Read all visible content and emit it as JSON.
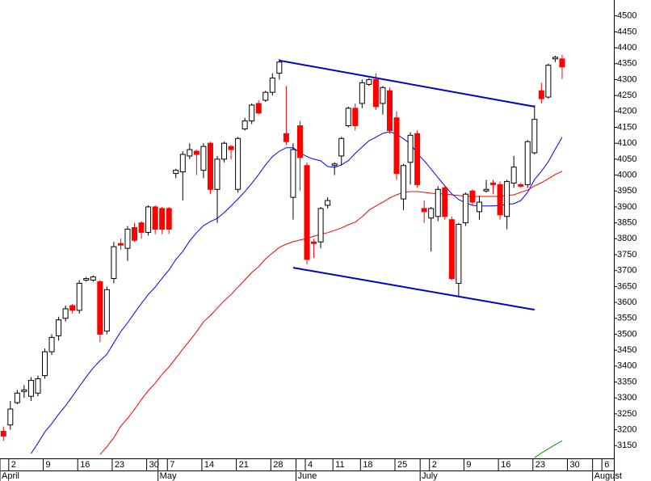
{
  "chart_data": {
    "type": "candlestick",
    "categories": [
      null,
      "2",
      null,
      null,
      null,
      null,
      "9",
      null,
      null,
      null,
      null,
      "16",
      null,
      null,
      null,
      null,
      "23",
      null,
      null,
      null,
      null,
      "30",
      null,
      null,
      "7",
      null,
      null,
      null,
      null,
      "14",
      null,
      null,
      null,
      null,
      "21",
      null,
      null,
      null,
      null,
      "28",
      null,
      null,
      null,
      null,
      "4",
      null,
      null,
      null,
      "11",
      null,
      null,
      null,
      "18",
      null,
      null,
      null,
      null,
      "25",
      null,
      null,
      null,
      null,
      "2",
      null,
      null,
      null,
      null,
      "9",
      null,
      null,
      null,
      null,
      "16",
      null,
      null,
      null,
      null,
      "23",
      null,
      null,
      null,
      null,
      "30",
      null,
      null,
      null,
      null,
      "6",
      null
    ],
    "months": [
      "April",
      "May",
      "June",
      "July",
      "August"
    ],
    "open": [
      3195,
      3215,
      3285,
      3320,
      3305,
      3315,
      3370,
      3445,
      3495,
      3550,
      3590,
      3575,
      3670,
      3670,
      3665,
      3510,
      3675,
      3785,
      3770,
      3835,
      3850,
      3820,
      3900,
      3895,
      3895,
      4005,
      4010,
      4060,
      4075,
      4015,
      4100,
      3955,
      4050,
      4090,
      3955,
      4145,
      4170,
      4225,
      4235,
      4260,
      4320,
      4130,
      3930,
      4155,
      4030,
      3790,
      3790,
      3905,
      4030,
      4060,
      4155,
      4210,
      4225,
      4285,
      4300,
      4225,
      4265,
      4180,
      3925,
      4040,
      4130,
      3895,
      3865,
      3870,
      3960,
      3860,
      3660,
      3850,
      3950,
      3885,
      3950,
      3975,
      3970,
      3870,
      3975,
      3970,
      3970,
      4070,
      4265,
      4245,
      4365,
      4365,
      null,
      null,
      null,
      null,
      null,
      null,
      null
    ],
    "high": [
      3210,
      3290,
      3325,
      3340,
      3365,
      3370,
      3455,
      3500,
      3555,
      3590,
      3595,
      3670,
      3680,
      3685,
      3670,
      3650,
      3790,
      3800,
      3840,
      3850,
      3855,
      3905,
      3905,
      3900,
      3900,
      4020,
      4075,
      4100,
      4080,
      4100,
      4105,
      4060,
      4105,
      4095,
      4120,
      4180,
      4225,
      4235,
      4265,
      4320,
      4365,
      4280,
      4100,
      4170,
      4040,
      3800,
      3900,
      3930,
      4040,
      4120,
      4215,
      4225,
      4300,
      4305,
      4320,
      4280,
      4275,
      4200,
      4035,
      4135,
      4140,
      3920,
      3900,
      3965,
      3965,
      3870,
      3850,
      3945,
      3955,
      3935,
      3985,
      3985,
      3980,
      3985,
      4060,
      3975,
      4110,
      4220,
      4290,
      4350,
      4375,
      4378,
      null,
      null,
      null,
      null,
      null,
      null,
      null
    ],
    "low": [
      3165,
      3200,
      3280,
      3300,
      3290,
      3305,
      3360,
      3435,
      3480,
      3540,
      3565,
      3565,
      3665,
      3665,
      3475,
      3500,
      3660,
      3765,
      3730,
      3790,
      3800,
      3810,
      3815,
      3815,
      3815,
      3990,
      3920,
      4050,
      4000,
      3990,
      3940,
      3850,
      4040,
      4050,
      3945,
      4140,
      4160,
      4190,
      4230,
      4250,
      4300,
      4095,
      3860,
      3950,
      3720,
      3740,
      3770,
      3895,
      4000,
      4030,
      4150,
      4140,
      4210,
      4280,
      4205,
      4190,
      4130,
      3985,
      3890,
      3970,
      3960,
      3850,
      3760,
      3855,
      3860,
      3670,
      3620,
      3840,
      3905,
      3860,
      3945,
      3940,
      3860,
      3830,
      3960,
      3960,
      3960,
      4065,
      4225,
      4240,
      4355,
      4302,
      null,
      null,
      null,
      null,
      null,
      null,
      null
    ],
    "close": [
      3180,
      3265,
      3315,
      3325,
      3355,
      3360,
      3445,
      3490,
      3545,
      3580,
      3575,
      3660,
      3675,
      3680,
      3500,
      3640,
      3775,
      3780,
      3830,
      3795,
      3820,
      3900,
      3830,
      3830,
      3830,
      4015,
      4065,
      4080,
      4065,
      4090,
      3955,
      4050,
      4100,
      4080,
      4115,
      4170,
      4220,
      4195,
      4260,
      4305,
      4355,
      4105,
      4080,
      4055,
      3735,
      3785,
      3895,
      3920,
      4035,
      4115,
      4210,
      4155,
      4290,
      4300,
      4215,
      4275,
      4140,
      4005,
      4030,
      4125,
      3970,
      3885,
      3895,
      3955,
      3870,
      3675,
      3845,
      3940,
      3915,
      3915,
      3955,
      3970,
      3875,
      3980,
      4025,
      3965,
      4105,
      4175,
      4240,
      4345,
      4370,
      4340,
      null,
      null,
      null,
      null,
      null,
      null,
      null
    ],
    "up_color": "#ffffff",
    "down_color": "#ff0000",
    "series": [
      {
        "color": "#0000ff",
        "values": [
          null,
          null,
          null,
          null,
          3125,
          3158,
          3193,
          3219,
          3249,
          3275,
          3305,
          3336,
          3366,
          3394,
          3417,
          3437,
          3473,
          3508,
          3536,
          3567,
          3597,
          3625,
          3648,
          3676,
          3702,
          3735,
          3760,
          3793,
          3819,
          3841,
          3854,
          3864,
          3882,
          3903,
          3925,
          3948,
          3974,
          4002,
          4032,
          4058,
          4075,
          4086,
          4086,
          4070,
          4058,
          4050,
          4045,
          4027,
          4024,
          4032,
          4045,
          4068,
          4088,
          4108,
          4119,
          4131,
          4136,
          4129,
          4114,
          4098,
          4068,
          4045,
          4019,
          3992,
          3966,
          3941,
          3923,
          3913,
          3905,
          3903,
          3903,
          3903,
          3905,
          3908,
          3910,
          3920,
          3946,
          3986,
          4012,
          4042,
          4081,
          4119,
          null,
          null,
          null,
          null,
          null,
          null,
          null
        ]
      },
      {
        "color": "#ff0000",
        "values": [
          null,
          null,
          null,
          null,
          null,
          null,
          null,
          null,
          null,
          null,
          null,
          null,
          null,
          null,
          3122,
          3147,
          3175,
          3211,
          3236,
          3264,
          3295,
          3323,
          3346,
          3374,
          3397,
          3425,
          3453,
          3480,
          3508,
          3539,
          3559,
          3582,
          3605,
          3625,
          3648,
          3671,
          3694,
          3712,
          3737,
          3755,
          3773,
          3783,
          3791,
          3796,
          3801,
          3808,
          3814,
          3819,
          3826,
          3834,
          3844,
          3852,
          3869,
          3890,
          3903,
          3915,
          3928,
          3938,
          3946,
          3948,
          3948,
          3946,
          3943,
          3941,
          3941,
          3938,
          3936,
          3933,
          3933,
          3933,
          3933,
          3933,
          3933,
          3936,
          3938,
          3946,
          3953,
          3966,
          3976,
          3989,
          4002,
          4012,
          null,
          null,
          null,
          null,
          null,
          null,
          null
        ]
      },
      {
        "color": "#009900",
        "values": [
          null,
          null,
          null,
          null,
          null,
          null,
          null,
          null,
          null,
          null,
          null,
          null,
          null,
          null,
          null,
          null,
          null,
          null,
          null,
          null,
          null,
          null,
          null,
          null,
          null,
          null,
          null,
          null,
          null,
          null,
          null,
          null,
          null,
          null,
          null,
          null,
          null,
          null,
          null,
          null,
          null,
          null,
          null,
          null,
          null,
          null,
          null,
          null,
          null,
          null,
          null,
          null,
          null,
          null,
          null,
          null,
          null,
          null,
          null,
          null,
          null,
          null,
          null,
          null,
          null,
          null,
          null,
          null,
          null,
          null,
          null,
          null,
          null,
          null,
          null,
          null,
          null,
          3112,
          3127,
          3140,
          3153,
          3165,
          null,
          null,
          null,
          null,
          null,
          null,
          null
        ]
      }
    ],
    "trendlines": [
      {
        "color": "#0000cc",
        "start_index": 40,
        "end_index": 77,
        "values": [
          4360,
          4215
        ]
      },
      {
        "color": "#0000cc",
        "start_index": 42,
        "end_index": 77,
        "values": [
          3709,
          3577
        ]
      }
    ],
    "ylim": [
      3110,
      4550
    ],
    "yticks": [
      3150,
      3200,
      3250,
      3300,
      3350,
      3400,
      3450,
      3500,
      3550,
      3600,
      3650,
      3700,
      3750,
      3800,
      3850,
      3900,
      3950,
      4000,
      4050,
      4100,
      4150,
      4200,
      4250,
      4300,
      4350,
      4400,
      4450,
      4500
    ],
    "grid": false
  }
}
